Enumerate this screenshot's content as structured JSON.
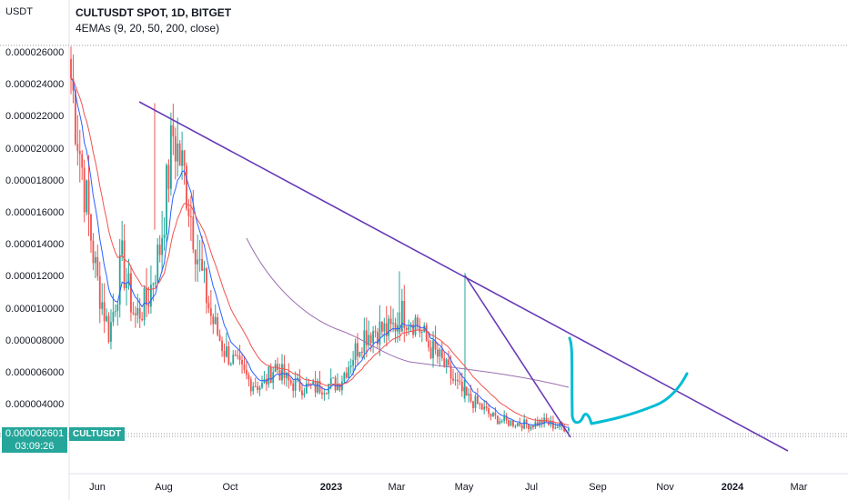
{
  "header": {
    "currency": "USDT",
    "title": "CULTUSDT SPOT, 1D, BITGET",
    "indicator": "4EMAs (9, 20, 50, 200, close)"
  },
  "price_badge": {
    "price": "0.000002601",
    "countdown": "03:09:26"
  },
  "symbol_badge": "CULTUSDT",
  "colors": {
    "up_candle": "#26a69a",
    "down_candle": "#ef5350",
    "ema9": "#2962ff",
    "ema20": "#ef5350",
    "ema200": "#9c6fb0",
    "trendline": "#673ab7",
    "drawing": "#00bcd4",
    "badge": "#26a69a"
  },
  "chart_data": {
    "type": "candlestick",
    "title": "CULTUSDT SPOT, 1D, BITGET",
    "y_ticks": [
      "0.000026000",
      "0.000024000",
      "0.000022000",
      "0.000020000",
      "0.000018000",
      "0.000016000",
      "0.000014000",
      "0.000012000",
      "0.000010000",
      "0.000008000",
      "0.000006000",
      "0.000004000"
    ],
    "x_ticks": [
      {
        "label": "Jun",
        "bold": false
      },
      {
        "label": "Aug",
        "bold": false
      },
      {
        "label": "Oct",
        "bold": false
      },
      {
        "label": "2023",
        "bold": true
      },
      {
        "label": "Mar",
        "bold": false
      },
      {
        "label": "May",
        "bold": false
      },
      {
        "label": "Jul",
        "bold": false
      },
      {
        "label": "Sep",
        "bold": false
      },
      {
        "label": "Nov",
        "bold": false
      },
      {
        "label": "2024",
        "bold": true
      },
      {
        "label": "Mar",
        "bold": false
      }
    ],
    "ylim": [
      1.7e-06,
      2.67e-05
    ],
    "last_price": 2.601e-06,
    "approx_close_series": [
      2.45e-05,
      1.8e-05,
      1.2e-05,
      8.5e-06,
      1.3e-05,
      9.5e-06,
      1.05e-05,
      1.4e-05,
      2.1e-05,
      1.8e-05,
      1.3e-05,
      9.5e-06,
      7.5e-06,
      6.5e-06,
      5.5e-06,
      5.2e-06,
      6.5e-06,
      5.5e-06,
      5.2e-06,
      5.1e-06,
      5.3e-06,
      5.4e-06,
      7e-06,
      8.5e-06,
      8.8e-06,
      8.6e-06,
      9.8e-06,
      9.3e-06,
      7.8e-06,
      6.8e-06,
      5.5e-06,
      4.5e-06,
      4e-06,
      3.3e-06,
      3e-06,
      2.9e-06,
      2.8e-06,
      3e-06,
      2.7e-06,
      2.6e-06
    ]
  }
}
